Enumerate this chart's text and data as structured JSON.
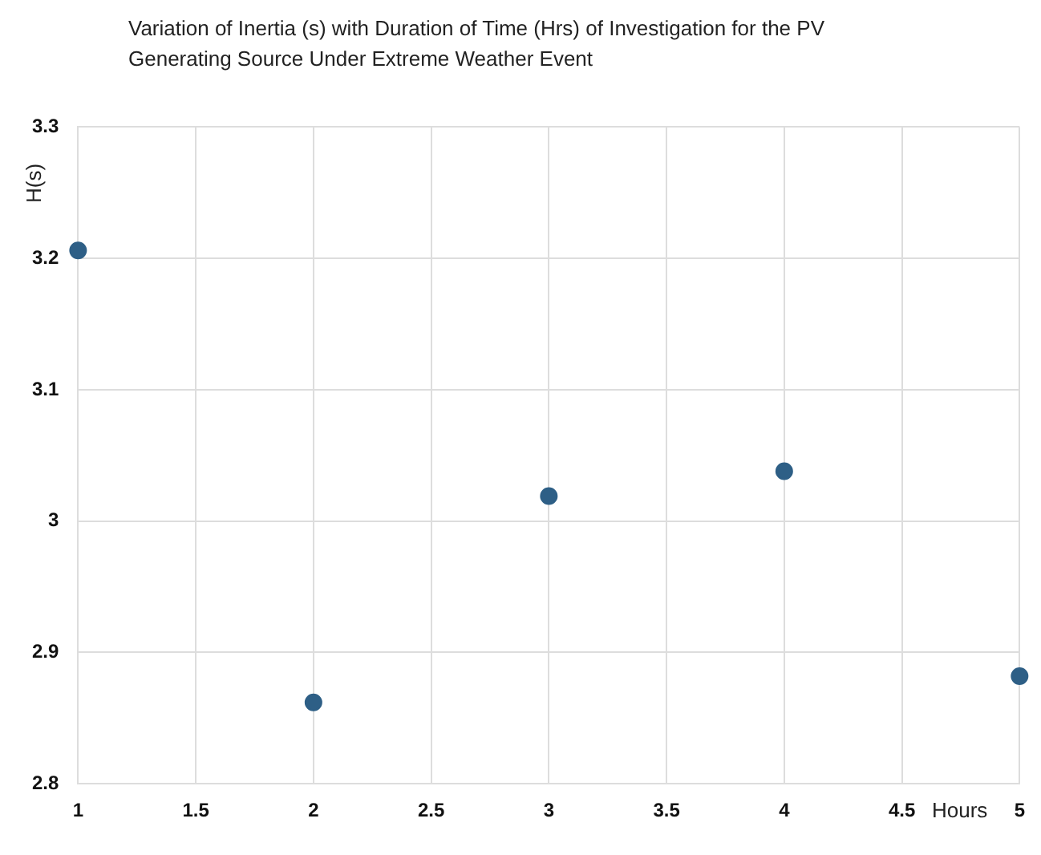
{
  "chart_data": {
    "type": "scatter",
    "title": "Variation of Inertia (s) with Duration of Time (Hrs) of Investigation for the PV Generating Source Under Extreme Weather Event",
    "xlabel": "Hours",
    "ylabel": "H(s)",
    "x": [
      1,
      2,
      3,
      4,
      5
    ],
    "series": [
      {
        "color": "#2e5f86",
        "values": [
          3.206,
          2.862,
          3.019,
          3.038,
          2.882
        ]
      }
    ],
    "xlim": [
      1,
      5
    ],
    "xticks": [
      1,
      1.5,
      2,
      2.5,
      3,
      3.5,
      4,
      4.5,
      5
    ],
    "ylim": [
      2.8,
      3.3
    ],
    "yticks": [
      2.8,
      2.9,
      3,
      3.1,
      3.2,
      3.3
    ],
    "grid": true,
    "legend": false,
    "marker": "circle"
  }
}
